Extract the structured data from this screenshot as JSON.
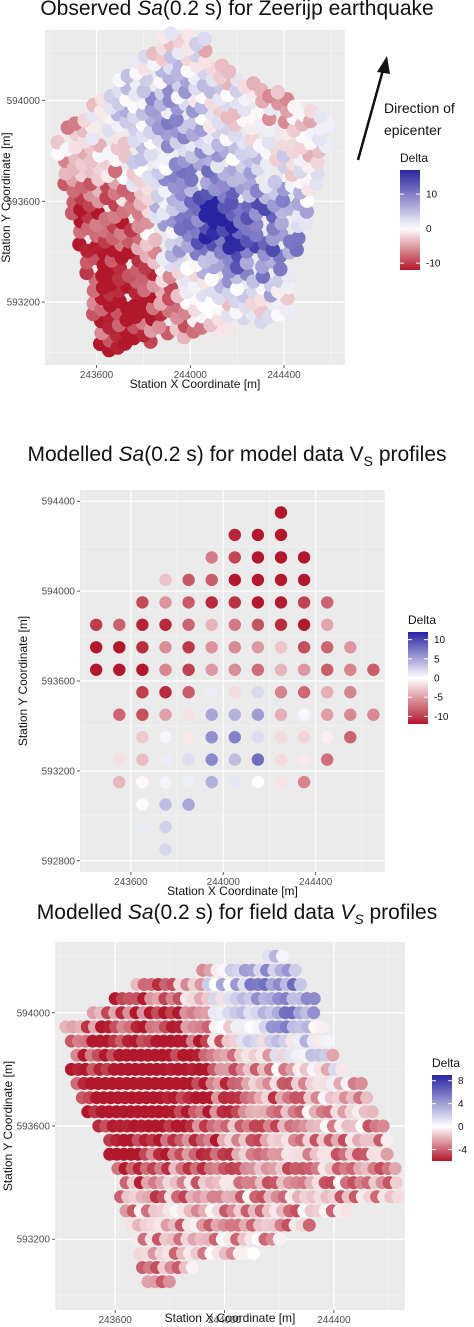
{
  "chart_data": [
    {
      "type": "scatter",
      "title_parts": [
        "Observed ",
        "Sa",
        "(0.2 s) for Zeerijp earthquake"
      ],
      "xlabel": "Station X Coordinate [m]",
      "ylabel": "Station Y Coordinate [m]",
      "xticks": [
        243600,
        244000,
        244400
      ],
      "yticks": [
        593200,
        593600,
        594000
      ],
      "xlim": [
        243380,
        244660
      ],
      "ylim": [
        592950,
        594280
      ],
      "legend": {
        "title": "Delta",
        "ticks": [
          10,
          0,
          -10
        ],
        "range": [
          -12,
          17
        ],
        "placement": "right"
      },
      "annotation": {
        "line1": "Direction of",
        "line2": "epicenter"
      },
      "grid": true,
      "footprint": {
        "type": "quad",
        "corners": [
          [
            243880,
            594260
          ],
          [
            244620,
            593920
          ],
          [
            244400,
            593130
          ],
          [
            243620,
            593000
          ]
        ],
        "extra": [
          [
            243420,
            593850
          ],
          [
            243900,
            594260
          ],
          [
            243620,
            593000
          ]
        ],
        "extraCorners": [
          [
            243420,
            593850
          ],
          [
            243900,
            594270
          ],
          [
            244100,
            594250
          ],
          [
            243620,
            593000
          ]
        ]
      },
      "spacing": 40,
      "seed": 11,
      "trend": {
        "origin": [
          243750,
          593300
        ],
        "dir": [
          0.4,
          0.92
        ],
        "slope": 0.012,
        "base": -3,
        "amp": 7
      },
      "hotspots": [
        [
          244080,
          593530,
          15
        ],
        [
          243880,
          593950,
          8
        ],
        [
          244360,
          593430,
          10
        ],
        [
          243550,
          593500,
          -8
        ],
        [
          243740,
          593180,
          -9
        ]
      ]
    },
    {
      "type": "scatter",
      "title_parts": [
        "Modelled ",
        "Sa",
        "(0.2 s) for model data V",
        "S",
        " profiles"
      ],
      "xlabel": "Station X Coordinate [m]",
      "ylabel": "Station Y Coordinate [m]",
      "xticks": [
        243600,
        244000,
        244400
      ],
      "yticks": [
        592800,
        593200,
        593600,
        594000,
        594400
      ],
      "xlim": [
        243380,
        244700
      ],
      "ylim": [
        592750,
        594450
      ],
      "legend": {
        "title": "Delta",
        "ticks": [
          10,
          5,
          0,
          -5,
          -10
        ],
        "range": [
          -12,
          12
        ],
        "placement": "right"
      },
      "grid": true,
      "spacing": 100,
      "seed": 23,
      "rows": [
        [
          594350,
          244250,
          244250
        ],
        [
          594250,
          244050,
          244250
        ],
        [
          594150,
          243950,
          244350
        ],
        [
          594050,
          243750,
          244350
        ],
        [
          593950,
          243650,
          244450
        ],
        [
          593850,
          243450,
          244450
        ],
        [
          593750,
          243450,
          244550
        ],
        [
          593650,
          243450,
          244650
        ],
        [
          593550,
          243650,
          244550
        ],
        [
          593450,
          243550,
          244650
        ],
        [
          593350,
          243650,
          244550
        ],
        [
          593250,
          243550,
          244450
        ],
        [
          593150,
          243550,
          244350
        ],
        [
          593050,
          243650,
          243850
        ],
        [
          592950,
          243650,
          243750
        ],
        [
          592850,
          243750,
          243750
        ]
      ],
      "trend": {
        "origin": [
          243650,
          594200
        ],
        "dir": [
          0.55,
          -0.83
        ],
        "slope": 0.014,
        "base": -6,
        "amp": 8
      },
      "hotspots": [
        [
          244250,
          594100,
          -13
        ],
        [
          243550,
          593650,
          -9
        ],
        [
          244050,
          593300,
          12
        ],
        [
          243750,
          592950,
          6
        ]
      ]
    },
    {
      "type": "scatter",
      "title_parts": [
        "Modelled ",
        "Sa",
        "(0.2 s) for field data ",
        "V",
        "S",
        " profiles"
      ],
      "xlabel": "Station X Coordinate [m]",
      "ylabel": "Station Y Coordinate [m]",
      "xticks": [
        243600,
        244000,
        244400
      ],
      "yticks": [
        593200,
        593600,
        594000
      ],
      "xlim": [
        243380,
        244660
      ],
      "ylim": [
        592950,
        594250
      ],
      "legend": {
        "title": "Delta",
        "ticks": [
          8,
          4,
          0,
          -4
        ],
        "range": [
          -6,
          9
        ],
        "placement": "right"
      },
      "grid": true,
      "spacing": 26,
      "seed": 37,
      "rows": [
        [
          594200,
          244160,
          244230
        ],
        [
          594150,
          243920,
          244280
        ],
        [
          594100,
          243680,
          244300
        ],
        [
          594050,
          243600,
          244330
        ],
        [
          594000,
          243520,
          244350
        ],
        [
          593950,
          243420,
          244360
        ],
        [
          593900,
          243440,
          244390
        ],
        [
          593850,
          243460,
          244420
        ],
        [
          593800,
          243440,
          244440
        ],
        [
          593750,
          243460,
          244500
        ],
        [
          593700,
          243480,
          244540
        ],
        [
          593650,
          243500,
          244560
        ],
        [
          593600,
          243540,
          244580
        ],
        [
          593550,
          243580,
          244600
        ],
        [
          593500,
          243580,
          244610
        ],
        [
          593450,
          243610,
          244630
        ],
        [
          593400,
          243640,
          244640
        ],
        [
          593350,
          243620,
          244640
        ],
        [
          593300,
          243640,
          244460
        ],
        [
          593250,
          243660,
          244320
        ],
        [
          593200,
          243680,
          244220
        ],
        [
          593150,
          243690,
          244130
        ],
        [
          593100,
          243700,
          243900
        ],
        [
          593050,
          243720,
          243820
        ]
      ],
      "trend": {
        "origin": [
          243600,
          593800
        ],
        "dir": [
          0.3,
          -0.95
        ],
        "slope": 0.006,
        "base": -2.5,
        "amp": 5
      },
      "hotspots": [
        [
          244120,
          594030,
          9
        ],
        [
          244180,
          593850,
          -5
        ],
        [
          243660,
          593700,
          -6
        ],
        [
          244300,
          593900,
          4
        ],
        [
          243900,
          593950,
          -3
        ]
      ]
    }
  ]
}
